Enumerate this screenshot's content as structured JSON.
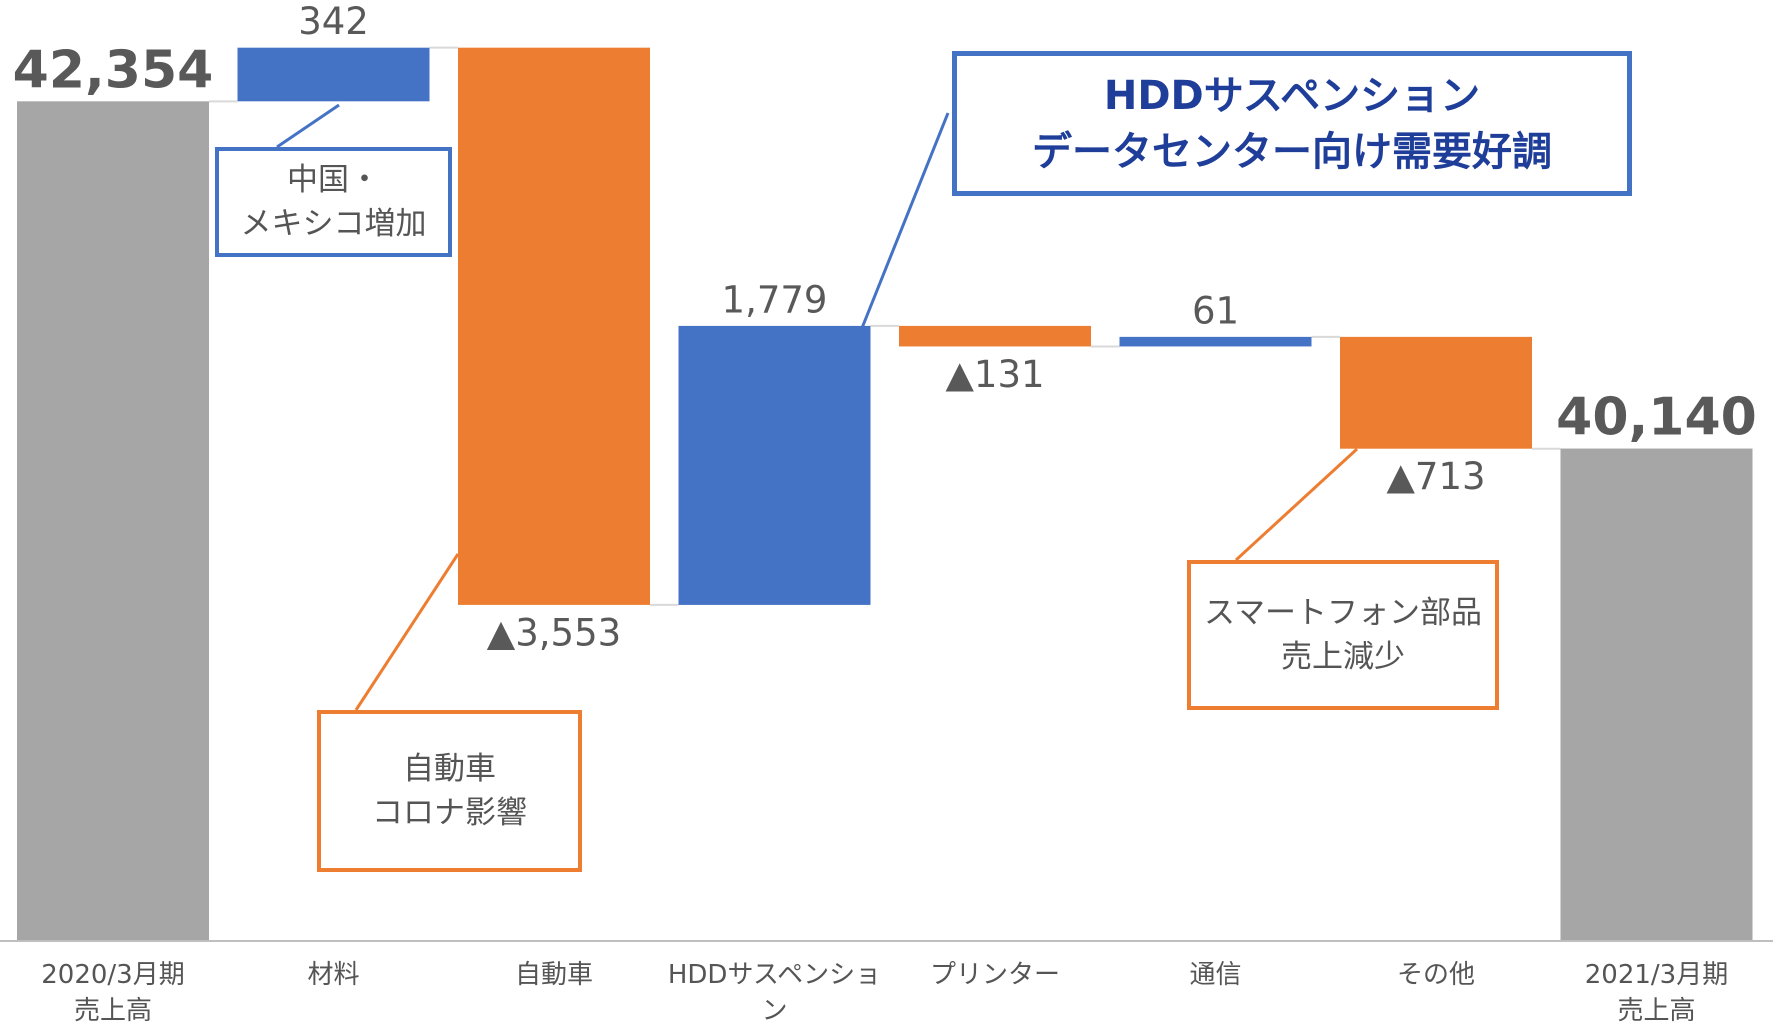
{
  "chart_data": {
    "type": "waterfall",
    "categories": [
      "2020/3月期\n売上高",
      "材料",
      "自動車",
      "HDDサスペンション",
      "プリンター",
      "通信",
      "その他",
      "2021/3月期\n売上高"
    ],
    "values": [
      42354,
      342,
      -3553,
      1779,
      -131,
      61,
      -713,
      40140
    ],
    "value_labels": [
      "42,354",
      "342",
      "▲3,553",
      "1,779",
      "▲131",
      "61",
      "▲713",
      "40,140"
    ],
    "totals": [
      true,
      false,
      false,
      false,
      false,
      false,
      false,
      true
    ],
    "colors": [
      "#a6a6a6",
      "#4472c4",
      "#ed7d31",
      "#4472c4",
      "#ed7d31",
      "#4472c4",
      "#ed7d31",
      "#a6a6a6"
    ],
    "ylim": [
      37000,
      43000
    ],
    "annotations": [
      "中国・\nメキシコ増加",
      "自動車\nコロナ影響",
      "HDDサスペンション\nデータセンター向け需要好調",
      "スマートフォン部品\n売上減少"
    ]
  }
}
